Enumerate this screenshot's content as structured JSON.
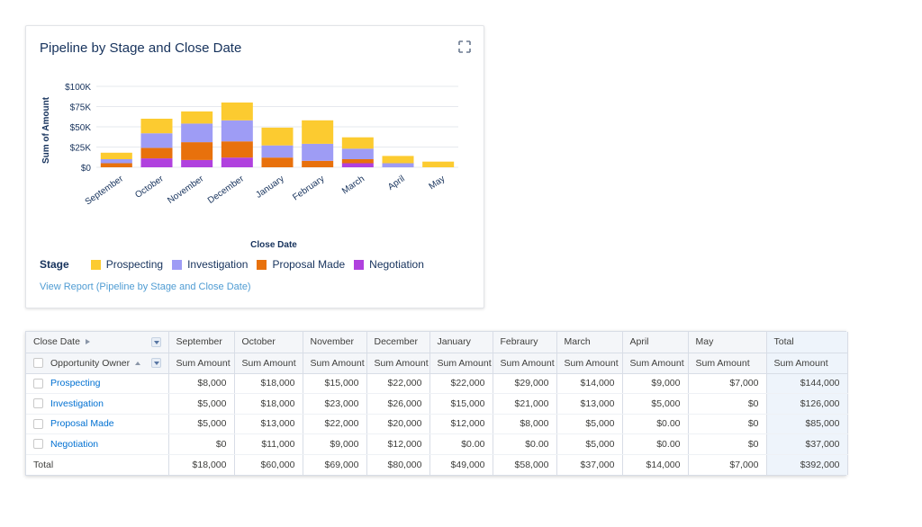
{
  "card": {
    "title": "Pipeline by Stage and Close Date",
    "report_link": "View Report (Pipeline by Stage and Close Date)",
    "expand_icon": "expand-icon"
  },
  "chart_data": {
    "type": "bar",
    "stacked": true,
    "title": "Pipeline by Stage and Close Date",
    "xlabel": "Close Date",
    "ylabel": "Sum of Amount",
    "ylim": [
      0,
      100000
    ],
    "yticks": [
      0,
      25000,
      50000,
      75000,
      100000
    ],
    "ytick_labels": [
      "$0",
      "$25K",
      "$50K",
      "$75K",
      "$100K"
    ],
    "categories": [
      "September",
      "October",
      "November",
      "December",
      "January",
      "February",
      "March",
      "April",
      "May"
    ],
    "legend_title": "Stage",
    "legend_position": "bottom-left",
    "series": [
      {
        "name": "Negotiation",
        "color": "#b041de",
        "values": [
          0,
          11000,
          9000,
          12000,
          0,
          0,
          5000,
          0,
          0
        ]
      },
      {
        "name": "Proposal Made",
        "color": "#e8710c",
        "values": [
          5000,
          13000,
          22000,
          20000,
          12000,
          8000,
          5000,
          0,
          0
        ]
      },
      {
        "name": "Investigation",
        "color": "#9e9cf5",
        "values": [
          5000,
          18000,
          23000,
          26000,
          15000,
          21000,
          13000,
          5000,
          0
        ]
      },
      {
        "name": "Prospecting",
        "color": "#fccb30",
        "values": [
          8000,
          18000,
          15000,
          22000,
          22000,
          29000,
          14000,
          9000,
          7000
        ]
      }
    ]
  },
  "legend": {
    "title": "Stage",
    "items": [
      {
        "label": "Prospecting",
        "color": "#fccb30"
      },
      {
        "label": "Investigation",
        "color": "#9e9cf5"
      },
      {
        "label": "Proposal Made",
        "color": "#e8710c"
      },
      {
        "label": "Negotiation",
        "color": "#b041de"
      }
    ]
  },
  "table": {
    "row_header_1": "Close Date",
    "row_header_2": "Opportunity Owner",
    "columns": [
      "September",
      "October",
      "November",
      "December",
      "January",
      "Febraury",
      "March",
      "April",
      "May",
      "Total"
    ],
    "sub_header": "Sum Amount",
    "rows": [
      {
        "label": "Prospecting",
        "values": [
          "$8,000",
          "$18,000",
          "$15,000",
          "$22,000",
          "$22,000",
          "$29,000",
          "$14,000",
          "$9,000",
          "$7,000",
          "$144,000"
        ]
      },
      {
        "label": "Investigation",
        "values": [
          "$5,000",
          "$18,000",
          "$23,000",
          "$26,000",
          "$15,000",
          "$21,000",
          "$13,000",
          "$5,000",
          "$0",
          "$126,000"
        ]
      },
      {
        "label": "Proposal Made",
        "values": [
          "$5,000",
          "$13,000",
          "$22,000",
          "$20,000",
          "$12,000",
          "$8,000",
          "$5,000",
          "$0.00",
          "$0",
          "$85,000"
        ]
      },
      {
        "label": "Negotiation",
        "values": [
          "$0",
          "$11,000",
          "$9,000",
          "$12,000",
          "$0.00",
          "$0.00",
          "$5,000",
          "$0.00",
          "$0",
          "$37,000"
        ]
      }
    ],
    "total": {
      "label": "Total",
      "values": [
        "$18,000",
        "$60,000",
        "$69,000",
        "$80,000",
        "$49,000",
        "$58,000",
        "$37,000",
        "$14,000",
        "$7,000",
        "$392,000"
      ]
    }
  }
}
